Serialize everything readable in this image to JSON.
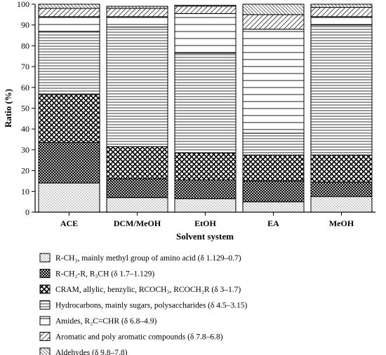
{
  "chart_data": {
    "type": "bar",
    "stacked": true,
    "percent_stacked": true,
    "xlabel": "Solvent system",
    "ylabel": "Ratio (%)",
    "ylim": [
      0,
      100
    ],
    "yticks": [
      0,
      10,
      20,
      30,
      40,
      50,
      60,
      70,
      80,
      90,
      100
    ],
    "grid": false,
    "legend_position": "bottom",
    "categories": [
      "ACE",
      "DCM/MeOH",
      "EtOH",
      "EA",
      "MeOH"
    ],
    "series": [
      {
        "name": "R-CH₃, mainly methyl group of amino acid (δ 1.129–0.7)",
        "pattern": "dots",
        "values": [
          14,
          7,
          6.5,
          5,
          7.5
        ]
      },
      {
        "name": "R-CH₂-R, R₃CH (δ 1.7–1.129)",
        "pattern": "dense-crosshatch",
        "values": [
          19.5,
          9,
          9,
          10,
          7
        ]
      },
      {
        "name": "CRAM, allylic, benzylic, RCOCH₃, RCOCH₂R (δ 3–1.7)",
        "pattern": "crosshatch",
        "values": [
          23,
          15.5,
          13,
          12.5,
          13
        ]
      },
      {
        "name": "Hydrocarbons, mainly sugars, polysaccharides (δ 4.5–3.15)",
        "pattern": "horizontal-lines",
        "values": [
          30.5,
          57.5,
          48,
          10.5,
          62.5
        ]
      },
      {
        "name": "Amides, R₂C=CHR (δ 6.8–4.9)",
        "pattern": "vertical-lines",
        "values": [
          7,
          5,
          19,
          50,
          4
        ]
      },
      {
        "name": "Aromatic and poly aromatic compounds (δ 7.8–6.8)",
        "pattern": "diagonal-lines",
        "values": [
          4,
          4,
          3.5,
          7,
          4.5
        ]
      },
      {
        "name": "Aldehydes (δ 9.8–7.8)",
        "pattern": "dense-diagonal-lines",
        "values": [
          2,
          1,
          0.5,
          5,
          1.5
        ]
      }
    ]
  }
}
